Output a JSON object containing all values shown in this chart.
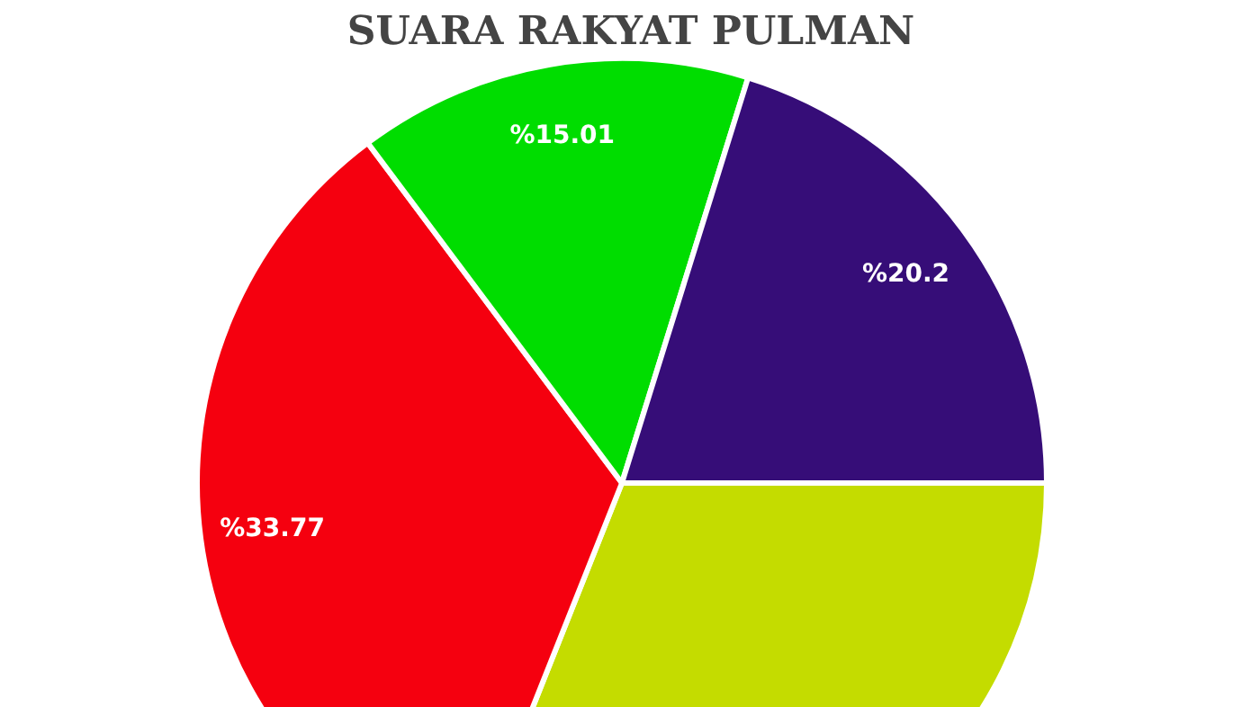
{
  "chart_data": {
    "type": "pie",
    "title": "SUARA RAKYAT PULMAN",
    "categories": [
      null,
      null,
      null,
      null
    ],
    "values": [
      31.02,
      33.77,
      15.01,
      20.2
    ],
    "colors": [
      "#c4dc00",
      "#f5000f",
      "#00dd00",
      "#360d78"
    ],
    "value_labels": [
      null,
      "%33.77",
      "%15.01",
      "%20.2"
    ]
  }
}
